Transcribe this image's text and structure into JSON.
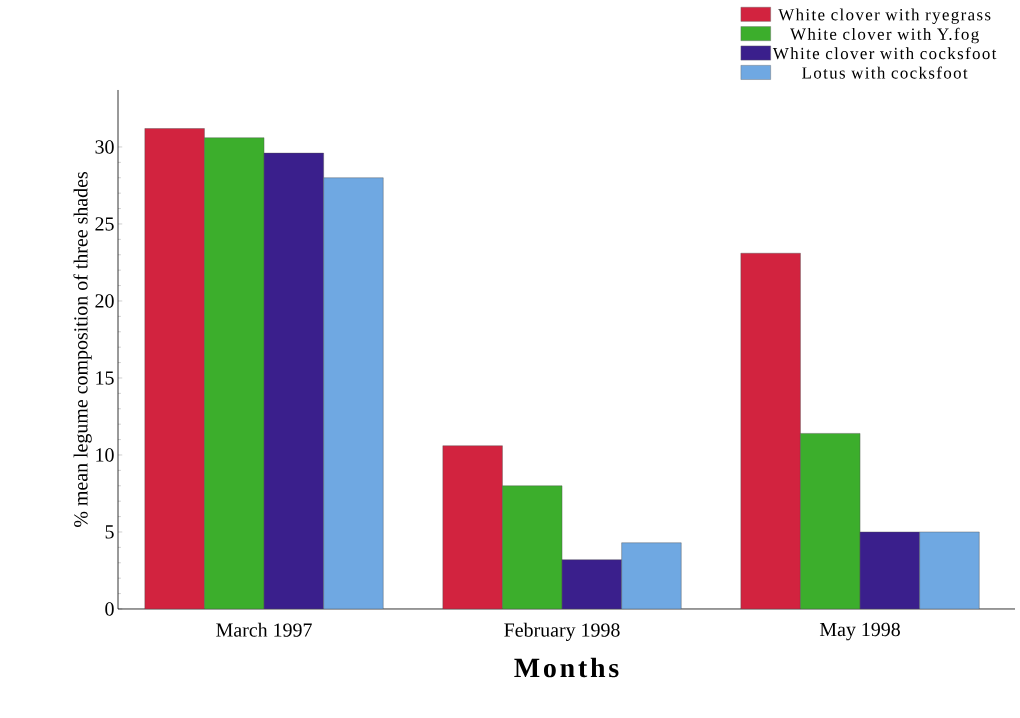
{
  "chart_data": {
    "type": "bar",
    "xlabel": "Months",
    "ylabel": "% mean legume composition of three shades",
    "categories": [
      "March 1997",
      "February 1998",
      "May 1998"
    ],
    "series": [
      {
        "name": "White clover with ryegrass",
        "color": "#d2233f",
        "values": [
          31.2,
          10.6,
          23.1
        ]
      },
      {
        "name": "White clover with Y.fog",
        "color": "#3cae2c",
        "values": [
          30.6,
          8.0,
          11.4
        ]
      },
      {
        "name": "White clover with cocksfoot",
        "color": "#3a1f8c",
        "values": [
          29.6,
          3.2,
          5.0
        ]
      },
      {
        "name": "Lotus with cocksfoot",
        "color": "#6fa8e2",
        "values": [
          28.0,
          4.3,
          5.0
        ]
      }
    ],
    "ylim": [
      0,
      33.7
    ],
    "yticks": [
      0,
      5,
      10,
      15,
      20,
      25,
      30
    ],
    "legend": "top right"
  }
}
